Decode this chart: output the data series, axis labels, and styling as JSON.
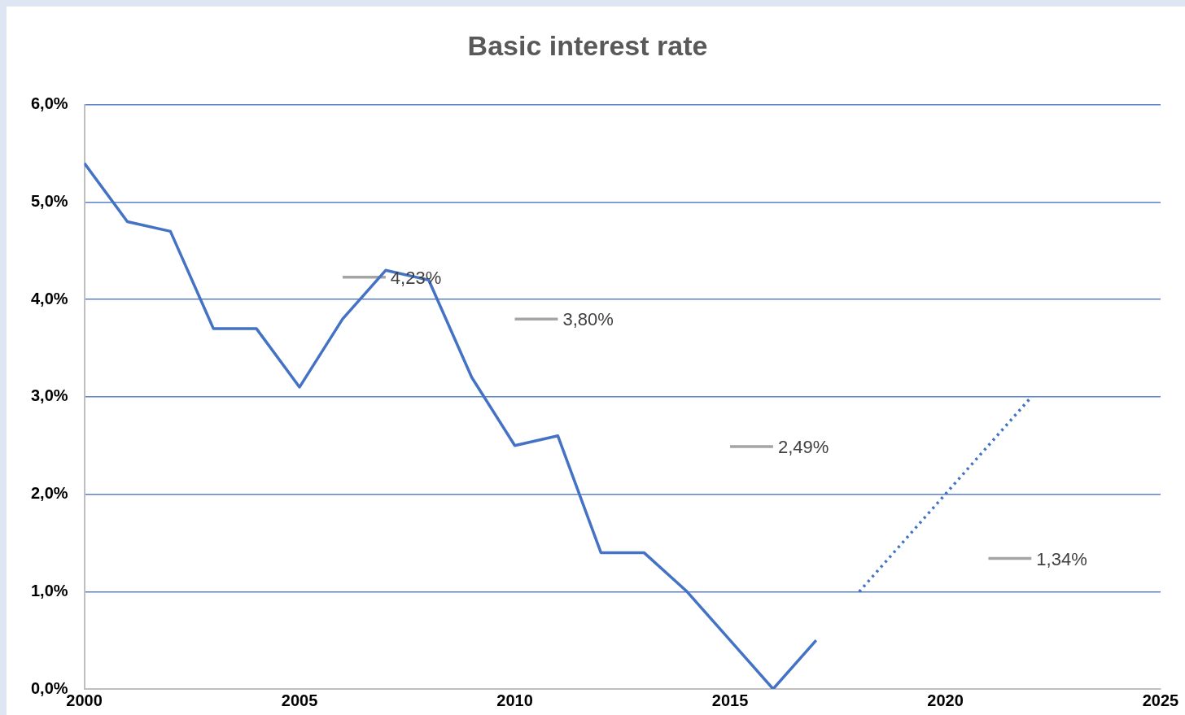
{
  "chart_data": {
    "type": "line",
    "title": "Basic interest rate",
    "xlim": [
      2000,
      2025
    ],
    "xticks": [
      2000,
      2005,
      2010,
      2015,
      2020,
      2025
    ],
    "ylim": [
      0,
      6
    ],
    "yticks": [
      {
        "value": 0,
        "label": "0,0%"
      },
      {
        "value": 1,
        "label": "1,0%"
      },
      {
        "value": 2,
        "label": "2,0%"
      },
      {
        "value": 3,
        "label": "3,0%"
      },
      {
        "value": 4,
        "label": "4,0%"
      },
      {
        "value": 5,
        "label": "5,0%"
      },
      {
        "value": 6,
        "label": "6,0%"
      }
    ],
    "grid": "y",
    "legend": false,
    "marker": "none",
    "series": [
      {
        "color": "#4472c4",
        "line_style": "solid",
        "x": [
          2000,
          2001,
          2002,
          2003,
          2004,
          2005,
          2006,
          2007,
          2008,
          2009,
          2010,
          2011,
          2012,
          2013,
          2014,
          2015,
          2016,
          2017
        ],
        "values": [
          5.4,
          4.8,
          4.7,
          3.7,
          3.7,
          3.1,
          3.8,
          4.3,
          4.2,
          3.2,
          2.5,
          2.6,
          1.4,
          1.4,
          1.0,
          0.5,
          0.0,
          0.5
        ]
      },
      {
        "color": "#4472c4",
        "line_style": "dotted",
        "x": [
          2018,
          2022
        ],
        "values": [
          1.0,
          3.0
        ]
      },
      {
        "color": "#a5a5a5",
        "line_style": "solid",
        "x": [
          2006,
          2007
        ],
        "values": [
          4.23,
          4.23
        ],
        "value_labels": [
          null,
          "4,23%"
        ]
      },
      {
        "color": "#a5a5a5",
        "line_style": "solid",
        "x": [
          2010,
          2011
        ],
        "values": [
          3.8,
          3.8
        ],
        "value_labels": [
          null,
          "3,80%"
        ]
      },
      {
        "color": "#a5a5a5",
        "line_style": "solid",
        "x": [
          2015,
          2016
        ],
        "values": [
          2.49,
          2.49
        ],
        "value_labels": [
          null,
          "2,49%"
        ]
      },
      {
        "color": "#a5a5a5",
        "line_style": "solid",
        "x": [
          2021,
          2022
        ],
        "values": [
          1.34,
          1.34
        ],
        "value_labels": [
          null,
          "1,34%"
        ]
      }
    ]
  }
}
